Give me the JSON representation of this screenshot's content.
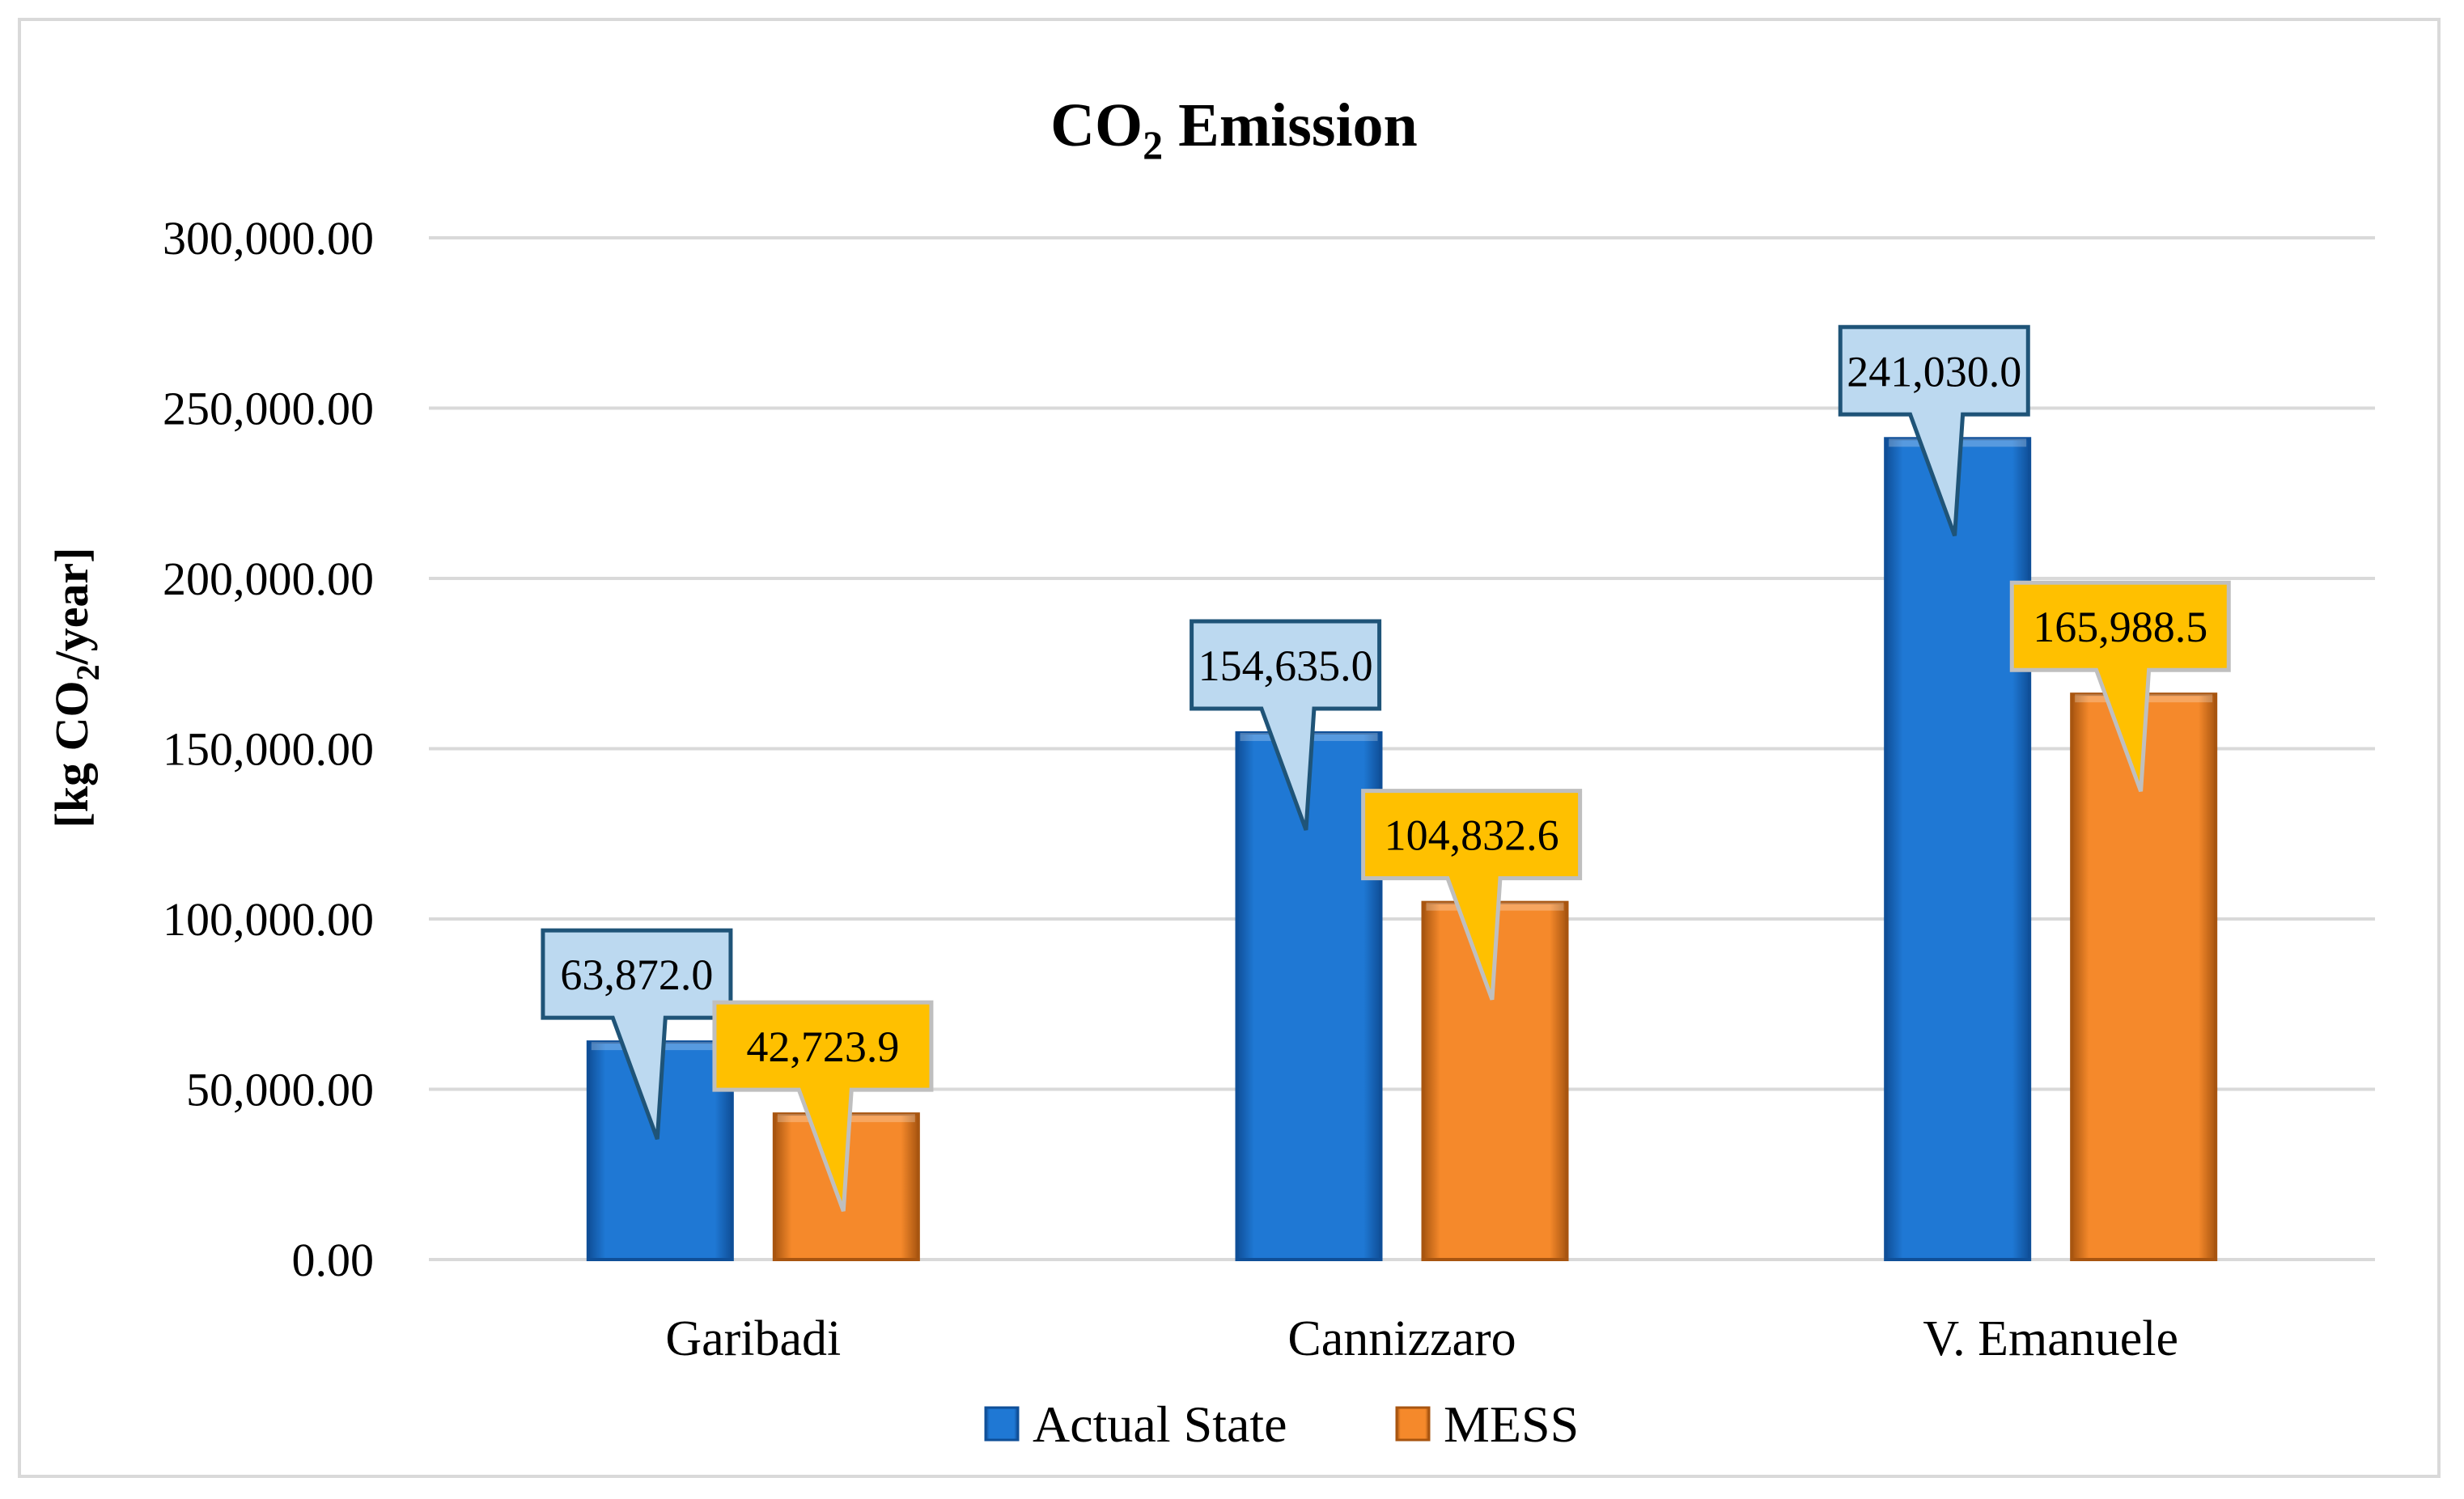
{
  "chart_data": {
    "type": "bar",
    "title_main": "CO",
    "title_sub": "2",
    "title_rest": " Emission",
    "ylabel_pre": "[kg CO",
    "ylabel_sub": "2",
    "ylabel_post": "/year]",
    "categories": [
      "Garibadi",
      "Cannizzaro",
      "V. Emanuele"
    ],
    "series": [
      {
        "name": "Actual State",
        "values": [
          63872.0,
          154635.0,
          241030.0
        ],
        "labels": [
          "63,872.0",
          "154,635.0",
          "241,030.0"
        ]
      },
      {
        "name": "MESS",
        "values": [
          42723.9,
          104832.6,
          165988.5
        ],
        "labels": [
          "42,723.9",
          "104,832.6",
          "165,988.5"
        ]
      }
    ],
    "yticks": [
      {
        "value": 0,
        "label": "0.00"
      },
      {
        "value": 50000,
        "label": "50,000.00"
      },
      {
        "value": 100000,
        "label": "100,000.00"
      },
      {
        "value": 150000,
        "label": "150,000.00"
      },
      {
        "value": 200000,
        "label": "200,000.00"
      },
      {
        "value": 250000,
        "label": "250,000.00"
      },
      {
        "value": 300000,
        "label": "300,000.00"
      }
    ],
    "ylim": [
      0,
      300000
    ],
    "grid": true,
    "legend_position": "bottom",
    "colors": {
      "actual_bar": "#1f78d4",
      "actual_bar_dark": "#0f4f98",
      "actual_callout_fill": "#bcd9f0",
      "actual_callout_stroke": "#1f5478",
      "mess_bar": "#f5892b",
      "mess_bar_dark": "#a85510",
      "mess_callout_fill": "#ffc000",
      "mess_callout_stroke": "#bfbfbf",
      "grid": "#d9d9d9",
      "text": "#000000"
    }
  }
}
